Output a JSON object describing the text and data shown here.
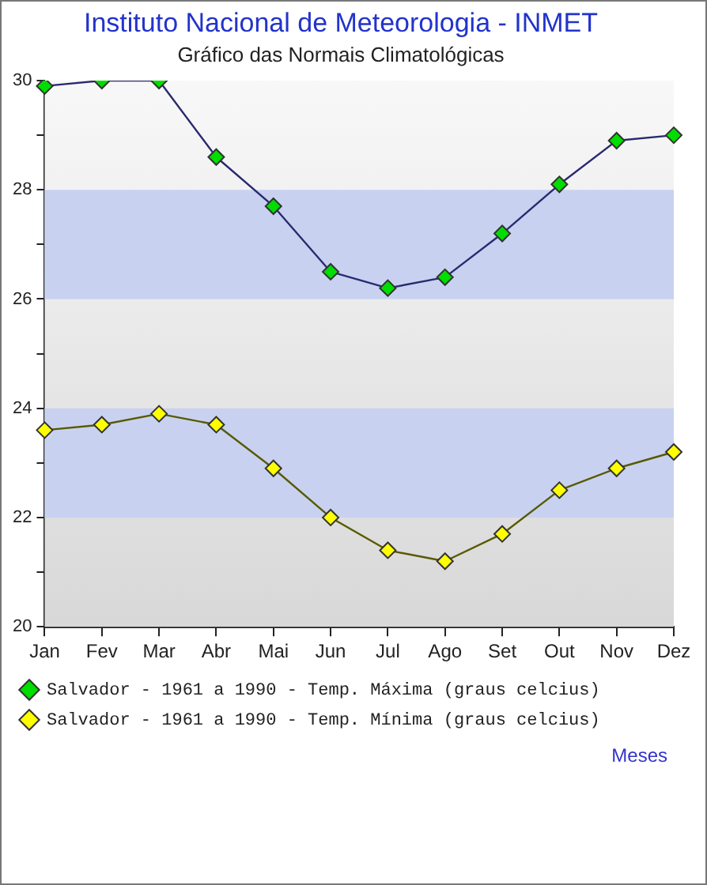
{
  "chart_data": {
    "type": "line",
    "title": "Instituto Nacional de Meteorologia - INMET",
    "subtitle": "Gráfico das Normais Climatológicas",
    "xlabel": "Meses",
    "categories": [
      "Jan",
      "Fev",
      "Mar",
      "Abr",
      "Mai",
      "Jun",
      "Jul",
      "Ago",
      "Set",
      "Out",
      "Nov",
      "Dez"
    ],
    "series": [
      {
        "name": "Salvador - 1961 a 1990 - Temp. Máxima (graus celcius)",
        "color": "#00dd00",
        "values": [
          29.9,
          30.0,
          30.0,
          28.6,
          27.7,
          26.5,
          26.2,
          26.4,
          27.2,
          28.1,
          28.9,
          29.0
        ]
      },
      {
        "name": "Salvador - 1961 a 1990 - Temp. Mínima (graus celcius)",
        "color": "#ffff00",
        "values": [
          23.6,
          23.7,
          23.9,
          23.7,
          22.9,
          22.0,
          21.4,
          21.2,
          21.7,
          22.5,
          22.9,
          23.2
        ]
      }
    ],
    "ylim": [
      20,
      30
    ],
    "yticks": [
      20,
      {
        "value": 21,
        "label": null
      },
      22,
      {
        "value": 23,
        "label": null
      },
      24,
      {
        "value": 25,
        "label": null
      },
      26,
      {
        "value": 27,
        "label": null
      },
      28,
      {
        "value": 29,
        "label": null
      },
      30
    ],
    "bands": [
      {
        "axis": "y",
        "from": 22,
        "to": 24,
        "color": "#c8d2f0"
      },
      {
        "axis": "y",
        "from": 26,
        "to": 28,
        "color": "#c8d2f0"
      }
    ],
    "grid": false,
    "legend": "bottom",
    "marker": "diamond",
    "line_style": "solid"
  }
}
